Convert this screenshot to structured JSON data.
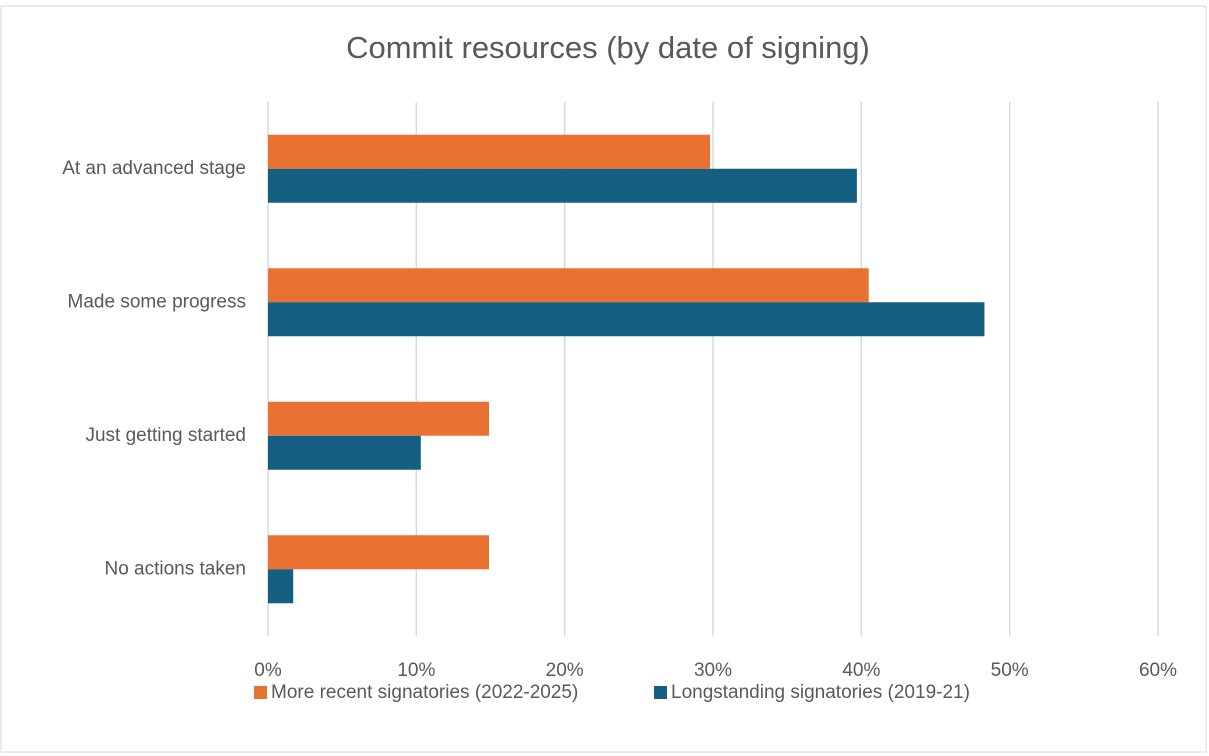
{
  "chart_data": {
    "type": "hbar",
    "title": "Commit resources (by date of signing)",
    "categories": [
      "At an advanced stage",
      "Made some progress",
      "Just getting started",
      "No actions taken"
    ],
    "series": [
      {
        "name": "More recent signatories (2022-2025)",
        "color": "#e97132",
        "values": [
          29.8,
          40.5,
          14.9,
          14.9
        ]
      },
      {
        "name": "Longstanding signatories (2019-21)",
        "color": "#156082",
        "values": [
          39.7,
          48.3,
          10.3,
          1.7
        ]
      }
    ],
    "xlim": [
      0,
      60
    ],
    "xticks": [
      {
        "value": 0,
        "label": "0%"
      },
      {
        "value": 10,
        "label": "10%"
      },
      {
        "value": 20,
        "label": "20%"
      },
      {
        "value": 30,
        "label": "30%"
      },
      {
        "value": 40,
        "label": "40%"
      },
      {
        "value": 50,
        "label": "50%"
      },
      {
        "value": 60,
        "label": "60%"
      }
    ],
    "grid": true,
    "legend": "bottom"
  }
}
